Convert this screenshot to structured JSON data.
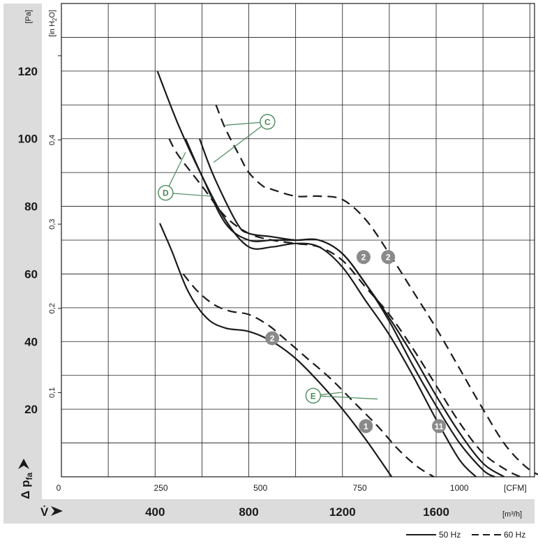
{
  "chart_data": {
    "type": "line",
    "title": "",
    "ylabel": "Δ p",
    "ylabel_sub": "fa",
    "y_unit": "[Pa]",
    "y2_unit_main": "[in H",
    "y2_unit_sub": "2",
    "y2_unit_end": "O]",
    "x_symbol": "V̇",
    "x_unit_cfm": "[CFM]",
    "x_unit_m3h": "[m³/h]",
    "ylim": [
      0,
      140
    ],
    "xlim_m3h": [
      0,
      2020
    ],
    "y_ticks": [
      "20",
      "40",
      "60",
      "80",
      "100",
      "120"
    ],
    "y2_ticks": [
      "0,1",
      "0,2",
      "0,3",
      "0,4"
    ],
    "cfm_ticks": [
      "0",
      "250",
      "500",
      "750",
      "1000"
    ],
    "m3h_ticks": [
      "400",
      "800",
      "1200",
      "1600"
    ],
    "grid": true,
    "legend_position": "bottom-right",
    "legend": [
      {
        "label": "50 Hz",
        "style": "solid"
      },
      {
        "label": "60 Hz",
        "style": "dashed"
      }
    ],
    "series": [
      {
        "style": "solid",
        "x": [
          420,
          470,
          540,
          620,
          700,
          800,
          900,
          1000,
          1100,
          1200,
          1300,
          1410
        ],
        "y": [
          75,
          67,
          55,
          47,
          44,
          43,
          40,
          35,
          28,
          20,
          11,
          0
        ]
      },
      {
        "style": "dashed",
        "x": [
          520,
          580,
          650,
          720,
          800,
          880,
          950,
          1050,
          1150,
          1250,
          1350,
          1440,
          1520,
          1590
        ],
        "y": [
          60,
          55,
          51,
          49,
          48,
          45,
          41,
          35,
          29,
          22,
          15,
          8,
          3,
          0
        ]
      },
      {
        "style": "solid",
        "x": [
          410,
          500,
          600,
          700,
          800,
          900,
          1000,
          1100,
          1200,
          1300,
          1400,
          1500,
          1600,
          1700,
          1770
        ],
        "y": [
          120,
          104,
          89,
          76,
          68,
          68,
          69,
          68,
          62,
          52,
          42,
          30,
          17,
          5,
          0
        ]
      },
      {
        "style": "solid",
        "x": [
          530,
          600,
          700,
          800,
          900,
          1000,
          1100,
          1200,
          1300,
          1400,
          1500,
          1600,
          1700,
          1800,
          1850
        ],
        "y": [
          100,
          89,
          75,
          70,
          70,
          70,
          70,
          66,
          57,
          46,
          33,
          21,
          10,
          2,
          0
        ]
      },
      {
        "style": "solid",
        "x": [
          590,
          650,
          750,
          800,
          900,
          1000,
          1100,
          1200,
          1300,
          1400,
          1500,
          1600,
          1700,
          1800,
          1890
        ],
        "y": [
          100,
          89,
          75,
          72,
          71,
          70,
          70,
          66,
          57,
          47,
          36,
          24,
          13,
          4,
          0
        ]
      },
      {
        "style": "dashed",
        "x": [
          460,
          500,
          600,
          700,
          800,
          900,
          1000,
          1100,
          1200,
          1300,
          1400,
          1500,
          1600,
          1700,
          1800,
          1900,
          1960
        ],
        "y": [
          100,
          95,
          86,
          77,
          72,
          70,
          69,
          68,
          64,
          56,
          48,
          38,
          27,
          16,
          7,
          2,
          0
        ]
      },
      {
        "style": "dashed",
        "x": [
          660,
          700,
          760,
          800,
          860,
          900,
          1000,
          1100,
          1200,
          1300,
          1400,
          1500,
          1600,
          1700,
          1800,
          1900,
          2000,
          2070
        ],
        "y": [
          110,
          103,
          95,
          90,
          86,
          85,
          83,
          83,
          82,
          76,
          66,
          55,
          44,
          32,
          20,
          9,
          2,
          0
        ]
      }
    ],
    "annotations": [
      {
        "text": "2",
        "kind": "number",
        "x": 900,
        "y": 41
      },
      {
        "text": "2",
        "kind": "number",
        "x": 1290,
        "y": 65
      },
      {
        "text": "2",
        "kind": "number",
        "x": 1395,
        "y": 65
      },
      {
        "text": "1",
        "kind": "number",
        "x": 1300,
        "y": 15
      },
      {
        "text": "11",
        "kind": "number",
        "x": 1612,
        "y": 15
      },
      {
        "text": "C",
        "kind": "letter",
        "x": 880,
        "y": 105,
        "targets": [
          [
            700,
            104
          ],
          [
            650,
            93
          ]
        ]
      },
      {
        "text": "D",
        "kind": "letter",
        "x": 445,
        "y": 84,
        "targets": [
          [
            530,
            96
          ],
          [
            640,
            83
          ]
        ]
      },
      {
        "text": "E",
        "kind": "letter",
        "x": 1075,
        "y": 24,
        "targets": [
          [
            1200,
            25
          ],
          [
            1350,
            23
          ]
        ]
      }
    ]
  }
}
